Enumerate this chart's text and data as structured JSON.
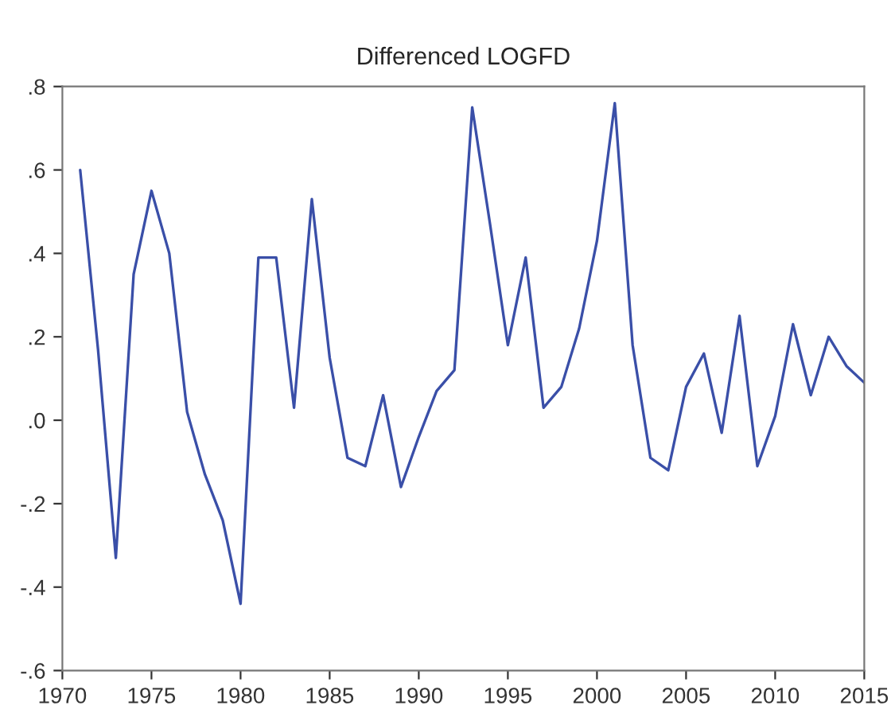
{
  "chart_data": {
    "type": "line",
    "title": "Differenced LOGFD",
    "x": [
      1971,
      1972,
      1973,
      1974,
      1975,
      1976,
      1977,
      1978,
      1979,
      1980,
      1981,
      1982,
      1983,
      1984,
      1985,
      1986,
      1987,
      1988,
      1989,
      1990,
      1991,
      1992,
      1993,
      1994,
      1995,
      1996,
      1997,
      1998,
      1999,
      2000,
      2001,
      2002,
      2003,
      2004,
      2005,
      2006,
      2007,
      2008,
      2009,
      2010,
      2011,
      2012,
      2013,
      2014,
      2015
    ],
    "series": [
      {
        "color": "#3a4fa8",
        "values": [
          0.6,
          0.17,
          -0.33,
          0.35,
          0.55,
          0.4,
          0.02,
          -0.13,
          -0.24,
          -0.44,
          0.39,
          0.39,
          0.03,
          0.53,
          0.15,
          -0.09,
          -0.11,
          0.06,
          -0.16,
          -0.04,
          0.07,
          0.12,
          0.75,
          0.47,
          0.18,
          0.39,
          0.03,
          0.08,
          0.22,
          0.43,
          0.76,
          0.18,
          -0.09,
          -0.12,
          0.08,
          0.16,
          -0.03,
          0.25,
          -0.11,
          0.01,
          0.23,
          0.06,
          0.2,
          0.13,
          0.09
        ]
      }
    ],
    "xlim": [
      1970,
      2015
    ],
    "xticks": [
      1970,
      1975,
      1980,
      1985,
      1990,
      1995,
      2000,
      2005,
      2010,
      2015
    ],
    "ylim": [
      -0.6,
      0.8
    ],
    "yticks": [
      {
        "value": -0.6,
        "label": "-.6"
      },
      {
        "value": -0.4,
        "label": "-.4"
      },
      {
        "value": -0.2,
        "label": "-.2"
      },
      {
        "value": 0.0,
        "label": ".0"
      },
      {
        "value": 0.2,
        "label": ".2"
      },
      {
        "value": 0.4,
        "label": ".4"
      },
      {
        "value": 0.6,
        "label": ".6"
      },
      {
        "value": 0.8,
        "label": ".8"
      }
    ],
    "grid": false,
    "legend": false,
    "line_style": "solid",
    "marker": "none"
  }
}
